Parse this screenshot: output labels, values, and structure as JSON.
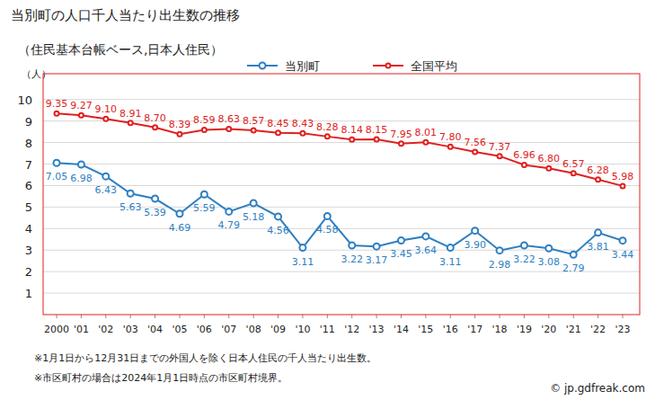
{
  "chart_data": {
    "type": "line",
    "title": "当別町の人口千人当たり出生数の推移",
    "subtitle": "（住民基本台帳ベース,日本人住民）",
    "y_label": "（人）",
    "categories": [
      "2000",
      "'01",
      "'02",
      "'03",
      "'04",
      "'05",
      "'06",
      "'07",
      "'08",
      "'09",
      "'10",
      "'11",
      "'12",
      "'13",
      "'14",
      "'15",
      "'16",
      "'17",
      "'18",
      "'19",
      "'20",
      "'21",
      "'22",
      "'23"
    ],
    "series": [
      {
        "name": "当別町",
        "color": "#2e7fc2",
        "marker": "circle",
        "values": [
          7.05,
          6.98,
          6.43,
          5.63,
          5.39,
          4.69,
          5.59,
          4.79,
          5.18,
          4.56,
          3.11,
          4.58,
          3.22,
          3.17,
          3.45,
          3.64,
          3.11,
          3.9,
          2.98,
          3.22,
          3.08,
          2.79,
          3.81,
          3.44
        ],
        "value_labels": [
          "7.05",
          "6.98",
          "6.43",
          "5.63",
          "5.39",
          "4.69",
          "5.59",
          "4.79",
          "5.18",
          "4.56",
          "3.11",
          "4.58",
          "3.22",
          "3.17",
          "3.45",
          "3.64",
          "3.11",
          "3.90",
          "2.98",
          "3.22",
          "3.08",
          "2.79",
          "3.81",
          "3.44"
        ]
      },
      {
        "name": "全国平均",
        "color": "#e02020",
        "marker": "circle",
        "values": [
          9.35,
          9.27,
          9.1,
          8.91,
          8.7,
          8.39,
          8.59,
          8.63,
          8.57,
          8.45,
          8.43,
          8.28,
          8.14,
          8.15,
          7.95,
          8.01,
          7.8,
          7.56,
          7.37,
          6.96,
          6.8,
          6.57,
          6.28,
          5.98
        ],
        "value_labels": [
          "9.35",
          "9.27",
          "9.10",
          "8.91",
          "8.70",
          "8.39",
          "8.59",
          "8.63",
          "8.57",
          "8.45",
          "8.43",
          "8.28",
          "8.14",
          "8.15",
          "7.95",
          "8.01",
          "7.80",
          "7.56",
          "7.37",
          "6.96",
          "6.80",
          "6.57",
          "6.28",
          "5.98"
        ]
      }
    ],
    "ylim": [
      0,
      11.2
    ],
    "yticks": [
      1,
      2,
      3,
      4,
      5,
      6,
      7,
      8,
      9,
      10
    ],
    "grid": true,
    "data_labels": true,
    "legend": "top",
    "notes": [
      "※1月1日から12月31日までの外国人を除く日本人住民の千人当たり出生数。",
      "※市区町村の場合は2024年1月1日時点の市区町村境界。"
    ],
    "source": "© jp.gdfreak.com"
  }
}
